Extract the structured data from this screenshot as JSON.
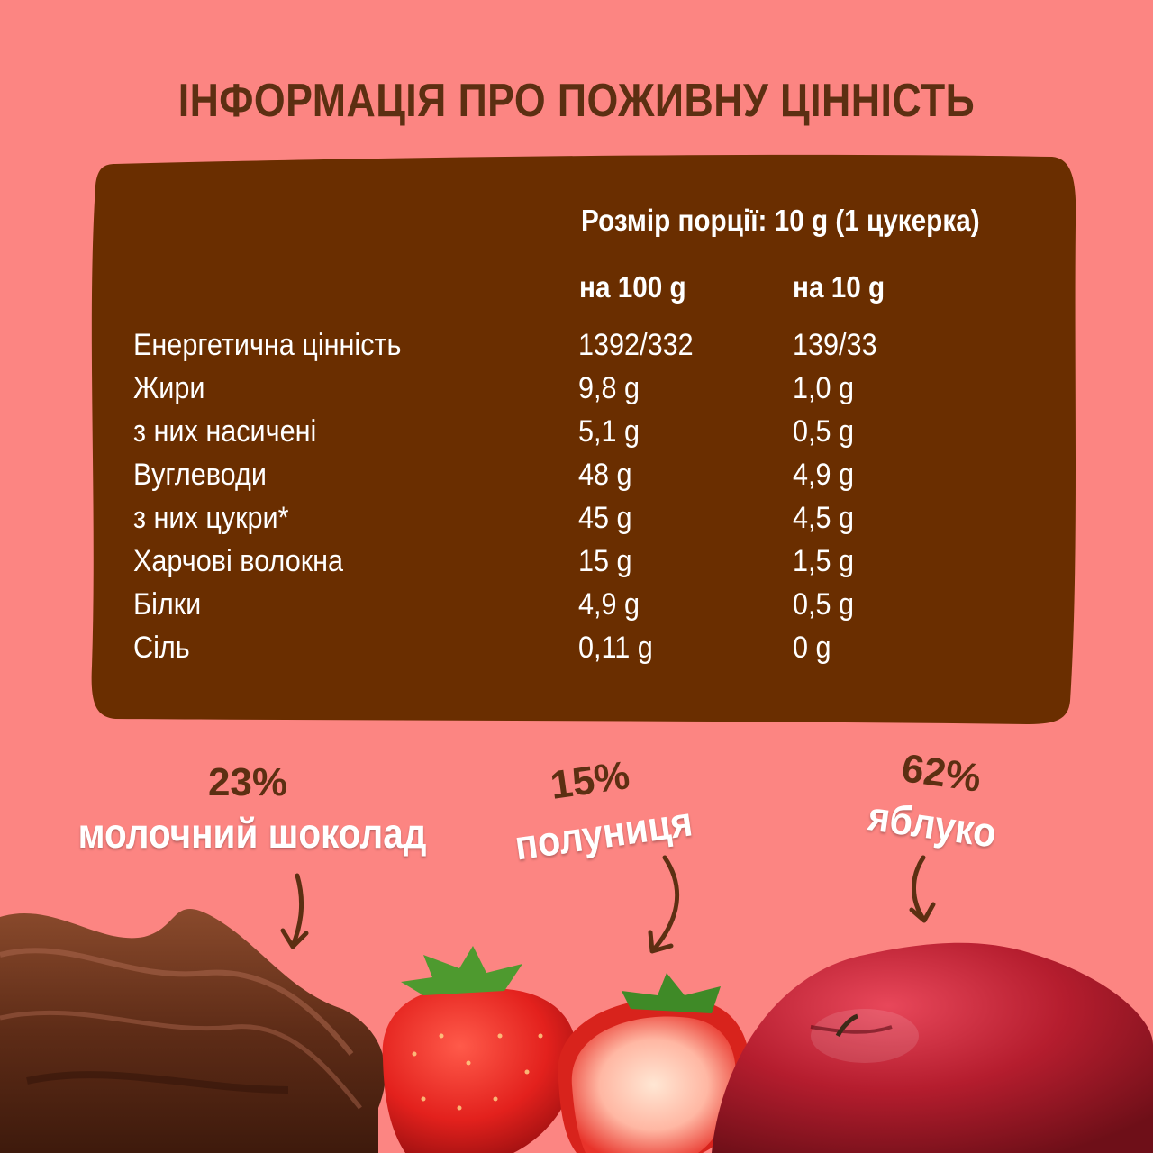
{
  "title": "ІНФОРМАЦІЯ ПРО ПОЖИВНУ ЦІННІСТЬ",
  "serving_size": "Розмір порції: 10 g (1 цукерка)",
  "columns": {
    "per100": "на 100 g",
    "per10": "на 10 g"
  },
  "rows": [
    {
      "label": "Енергетична цінність",
      "per100": "1392/332",
      "per10": "139/33"
    },
    {
      "label": "Жири",
      "per100": "9,8 g",
      "per10": "1,0 g"
    },
    {
      "label": "з них насичені",
      "per100": "5,1 g",
      "per10": "0,5 g"
    },
    {
      "label": "Вуглеводи",
      "per100": "48 g",
      "per10": "4,9 g"
    },
    {
      "label": "з них цукри*",
      "per100": "45 g",
      "per10": "4,5 g"
    },
    {
      "label": "Харчові волокна",
      "per100": "15 g",
      "per10": "1,5 g"
    },
    {
      "label": "Білки",
      "per100": "4,9 g",
      "per10": "0,5 g"
    },
    {
      "label": "Сіль",
      "per100": "0,11 g",
      "per10": "0 g"
    }
  ],
  "ingredients": [
    {
      "percent": "23%",
      "name": "молочний шоколад"
    },
    {
      "percent": "15%",
      "name": "полуниця"
    },
    {
      "percent": "62%",
      "name": "яблуко"
    }
  ],
  "colors": {
    "background": "#fc8582",
    "panel": "#6a2e00",
    "title": "#5c2f12",
    "text": "#ffffff"
  }
}
